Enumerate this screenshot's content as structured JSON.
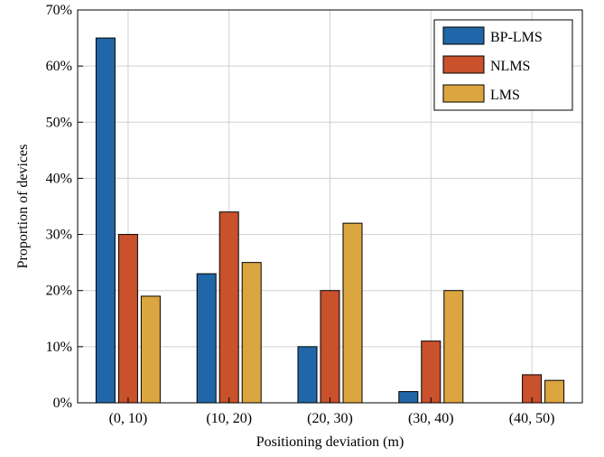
{
  "chart_data": {
    "type": "bar",
    "title": "",
    "xlabel": "Positioning deviation (m)",
    "ylabel": "Proportion of devices",
    "ylim": [
      0,
      70
    ],
    "yticks": [
      0,
      10,
      20,
      30,
      40,
      50,
      60,
      70
    ],
    "ytick_labels": [
      "0%",
      "10%",
      "20%",
      "30%",
      "40%",
      "50%",
      "60%",
      "70%"
    ],
    "grid": true,
    "legend_position": "top-right",
    "categories": [
      "(0, 10)",
      "(10, 20)",
      "(20, 30)",
      "(30, 40)",
      "(40, 50)"
    ],
    "series": [
      {
        "name": "BP-LMS",
        "color": "#2166a8",
        "values": [
          65,
          23,
          10,
          2,
          0
        ]
      },
      {
        "name": "NLMS",
        "color": "#c9512c",
        "values": [
          30,
          34,
          20,
          11,
          5
        ]
      },
      {
        "name": "LMS",
        "color": "#dba53f",
        "values": [
          19,
          25,
          32,
          20,
          4
        ]
      }
    ]
  }
}
